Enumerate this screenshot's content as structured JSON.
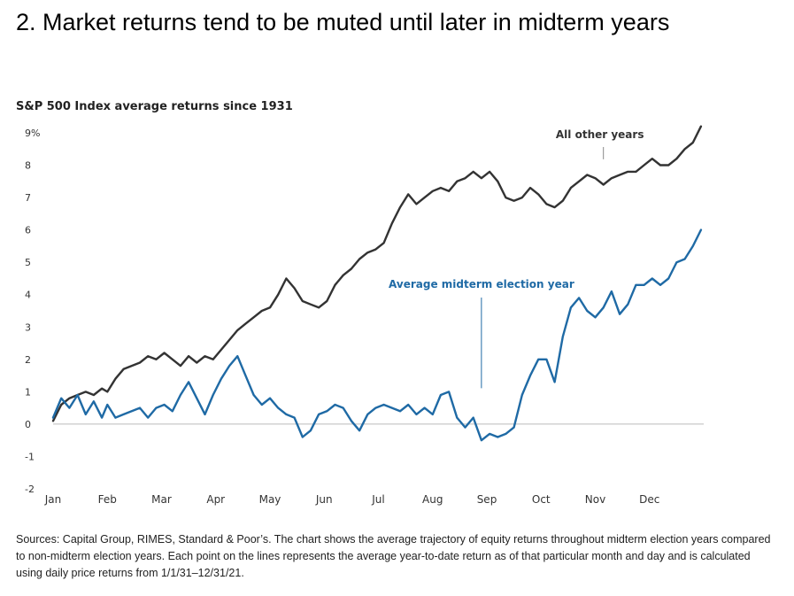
{
  "heading": "2. Market returns tend to be muted until later in midterm years",
  "chart_title": "S&P 500 Index average returns since 1931",
  "note": "Sources: Capital Group, RIMES, Standard & Poor’s. The chart shows the average trajectory of equity returns throughout midterm election years compared to non-midterm election years. Each point on the lines represents the average year-to-date return as of that particular month and day and is calculated using daily price returns from 1/1/31–12/31/21.",
  "colors": {
    "other_years": "#333333",
    "midterm": "#1f6aa5",
    "baseline": "#bbbbbb",
    "annotation_line": "#888888"
  },
  "chart_data": {
    "type": "line",
    "title": "S&P 500 Index average returns since 1931",
    "xlabel": "",
    "ylabel": "",
    "ylim": [
      -2,
      9
    ],
    "y_ticks": [
      "9%",
      "8",
      "7",
      "6",
      "5",
      "4",
      "3",
      "2",
      "1",
      "0",
      "-1",
      "-2"
    ],
    "y_tick_values": [
      9,
      8,
      7,
      6,
      5,
      4,
      3,
      2,
      1,
      0,
      -1,
      -2
    ],
    "x_ticks": [
      "Jan",
      "Feb",
      "Mar",
      "Apr",
      "May",
      "Jun",
      "Jul",
      "Aug",
      "Sep",
      "Oct",
      "Nov",
      "Dec"
    ],
    "xlim": [
      0,
      12
    ],
    "grid": false,
    "series": [
      {
        "name": "All other years",
        "x": [
          0.0,
          0.15,
          0.3,
          0.45,
          0.6,
          0.75,
          0.9,
          1.0,
          1.15,
          1.3,
          1.45,
          1.6,
          1.75,
          1.9,
          2.05,
          2.2,
          2.35,
          2.5,
          2.65,
          2.8,
          2.95,
          3.1,
          3.25,
          3.4,
          3.55,
          3.7,
          3.85,
          4.0,
          4.15,
          4.3,
          4.45,
          4.6,
          4.75,
          4.9,
          5.05,
          5.2,
          5.35,
          5.5,
          5.65,
          5.8,
          5.95,
          6.1,
          6.25,
          6.4,
          6.55,
          6.7,
          6.85,
          7.0,
          7.15,
          7.3,
          7.45,
          7.6,
          7.75,
          7.9,
          8.05,
          8.2,
          8.35,
          8.5,
          8.65,
          8.8,
          8.95,
          9.1,
          9.25,
          9.4,
          9.55,
          9.7,
          9.85,
          10.0,
          10.15,
          10.3,
          10.45,
          10.6,
          10.75,
          10.9,
          11.05,
          11.2,
          11.35,
          11.5,
          11.65,
          11.8,
          11.95
        ],
        "values": [
          0.1,
          0.6,
          0.8,
          0.9,
          1.0,
          0.9,
          1.1,
          1.0,
          1.4,
          1.7,
          1.8,
          1.9,
          2.1,
          2.0,
          2.2,
          2.0,
          1.8,
          2.1,
          1.9,
          2.1,
          2.0,
          2.3,
          2.6,
          2.9,
          3.1,
          3.3,
          3.5,
          3.6,
          4.0,
          4.5,
          4.2,
          3.8,
          3.7,
          3.6,
          3.8,
          4.3,
          4.6,
          4.8,
          5.1,
          5.3,
          5.4,
          5.6,
          6.2,
          6.7,
          7.1,
          6.8,
          7.0,
          7.2,
          7.3,
          7.2,
          7.5,
          7.6,
          7.8,
          7.6,
          7.8,
          7.5,
          7.0,
          6.9,
          7.0,
          7.3,
          7.1,
          6.8,
          6.7,
          6.9,
          7.3,
          7.5,
          7.7,
          7.6,
          7.4,
          7.6,
          7.7,
          7.8,
          7.8,
          8.0,
          8.2,
          8.0,
          8.0,
          8.2,
          8.5,
          8.7,
          9.2
        ]
      },
      {
        "name": "Average midterm election year",
        "x": [
          0.0,
          0.15,
          0.3,
          0.45,
          0.6,
          0.75,
          0.9,
          1.0,
          1.15,
          1.3,
          1.45,
          1.6,
          1.75,
          1.9,
          2.05,
          2.2,
          2.35,
          2.5,
          2.65,
          2.8,
          2.95,
          3.1,
          3.25,
          3.4,
          3.55,
          3.7,
          3.85,
          4.0,
          4.15,
          4.3,
          4.45,
          4.6,
          4.75,
          4.9,
          5.05,
          5.2,
          5.35,
          5.5,
          5.65,
          5.8,
          5.95,
          6.1,
          6.25,
          6.4,
          6.55,
          6.7,
          6.85,
          7.0,
          7.15,
          7.3,
          7.45,
          7.6,
          7.75,
          7.9,
          8.05,
          8.2,
          8.35,
          8.5,
          8.65,
          8.8,
          8.95,
          9.1,
          9.25,
          9.4,
          9.55,
          9.7,
          9.85,
          10.0,
          10.15,
          10.3,
          10.45,
          10.6,
          10.75,
          10.9,
          11.05,
          11.2,
          11.35,
          11.5,
          11.65,
          11.8,
          11.95
        ],
        "values": [
          0.2,
          0.8,
          0.5,
          0.9,
          0.3,
          0.7,
          0.2,
          0.6,
          0.2,
          0.3,
          0.4,
          0.5,
          0.2,
          0.5,
          0.6,
          0.4,
          0.9,
          1.3,
          0.8,
          0.3,
          0.9,
          1.4,
          1.8,
          2.1,
          1.5,
          0.9,
          0.6,
          0.8,
          0.5,
          0.3,
          0.2,
          -0.4,
          -0.2,
          0.3,
          0.4,
          0.6,
          0.5,
          0.1,
          -0.2,
          0.3,
          0.5,
          0.6,
          0.5,
          0.4,
          0.6,
          0.3,
          0.5,
          0.3,
          0.9,
          1.0,
          0.2,
          -0.1,
          0.2,
          -0.5,
          -0.3,
          -0.4,
          -0.3,
          -0.1,
          0.9,
          1.5,
          2.0,
          2.0,
          1.3,
          2.7,
          3.6,
          3.9,
          3.5,
          3.3,
          3.6,
          4.1,
          3.4,
          3.7,
          4.3,
          4.3,
          4.5,
          4.3,
          4.5,
          5.0,
          5.1,
          5.5,
          6.0
        ]
      }
    ],
    "annotations": [
      {
        "text": "All other years",
        "series": 0,
        "x": 10.15,
        "value": 7.8
      },
      {
        "text": "Average midterm election year",
        "series": 1,
        "x": 7.9,
        "value": 1.0
      }
    ]
  }
}
